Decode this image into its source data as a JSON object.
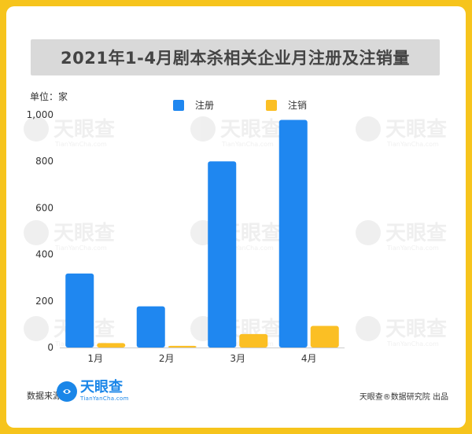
{
  "title": "2021年1-4月剧本杀相关企业月注册及注销量",
  "unit_label": "单位：家",
  "watermark": {
    "brand": "天眼查",
    "domain": "TianYanCha.com"
  },
  "footer": {
    "source_label": "数据来源：",
    "logo_brand": "天眼查",
    "logo_domain": "TianYanCha.com",
    "credit": "天眼查®数据研究院 出品"
  },
  "colors": {
    "background_frame": "#f6c41c",
    "register": "#1f87f0",
    "cancel": "#fbbf24",
    "axis": "#cccccc"
  },
  "chart_data": {
    "type": "bar",
    "categories": [
      "1月",
      "2月",
      "3月",
      "4月"
    ],
    "series": [
      {
        "name": "注册",
        "color": "#1f87f0",
        "values": [
          318,
          177,
          800,
          978
        ]
      },
      {
        "name": "注销",
        "color": "#fbbf24",
        "values": [
          19,
          7,
          58,
          93
        ]
      }
    ],
    "ylim": [
      0,
      1000
    ],
    "yticks": [
      0,
      200,
      400,
      600,
      800,
      1000
    ],
    "ytick_labels": [
      "0",
      "200",
      "400",
      "600",
      "800",
      "1,000"
    ],
    "legend_position": "top",
    "grid": false
  }
}
